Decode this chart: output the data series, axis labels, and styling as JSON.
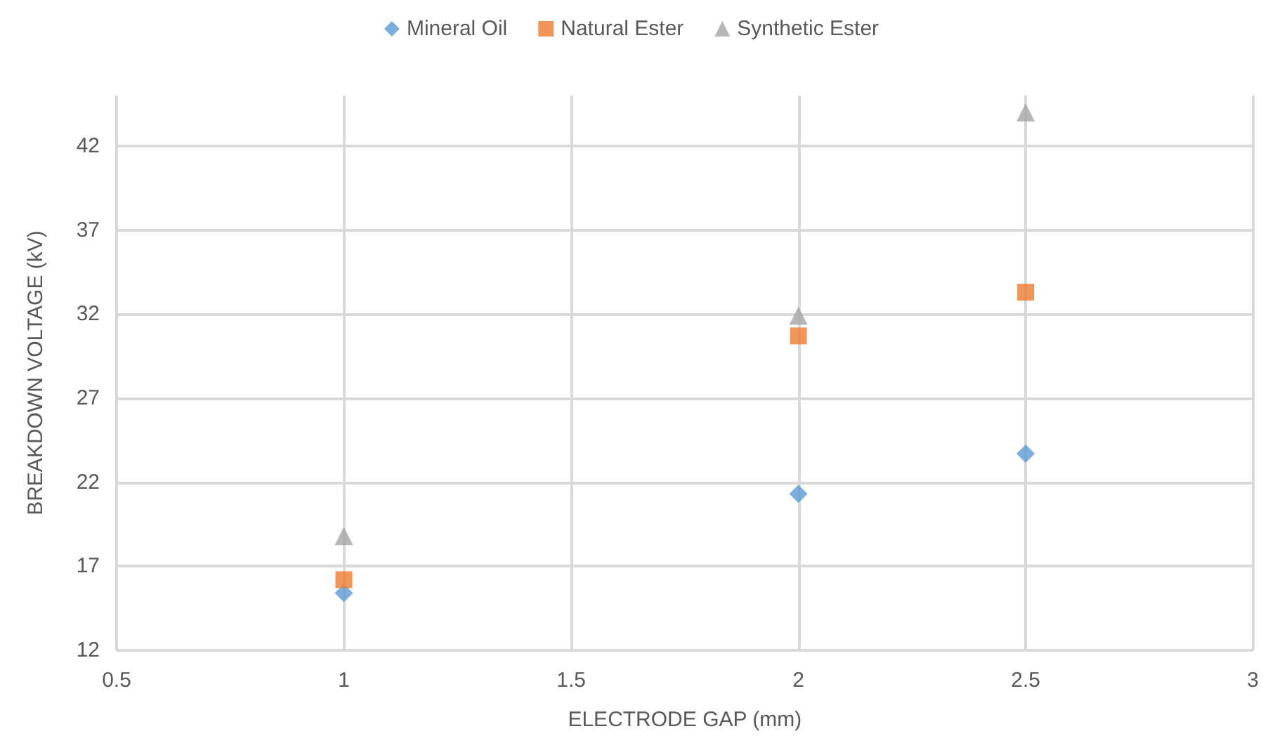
{
  "chart_data": {
    "type": "scatter",
    "xlabel": "ELECTRODE GAP (mm)",
    "ylabel": "BREAKDOWN VOLTAGE (kV)",
    "x": [
      1,
      2,
      2.5
    ],
    "series": [
      {
        "name": "Mineral Oil",
        "color": "#5b9bd5",
        "marker": "diamond",
        "values": [
          15.4,
          21.3,
          23.7
        ]
      },
      {
        "name": "Natural Ester",
        "color": "#ed7d31",
        "marker": "square",
        "values": [
          16.2,
          30.7,
          33.3
        ]
      },
      {
        "name": "Synthetic Ester",
        "color": "#a5a5a5",
        "marker": "triangle",
        "values": [
          18.8,
          31.9,
          44.0
        ]
      }
    ],
    "xlim": [
      0.5,
      3
    ],
    "xticks": [
      0.5,
      1,
      1.5,
      2,
      2.5,
      3
    ],
    "ylim": [
      12,
      45
    ],
    "yticks": [
      12,
      17,
      22,
      27,
      32,
      37,
      42
    ],
    "grid": true,
    "legend": "top"
  }
}
